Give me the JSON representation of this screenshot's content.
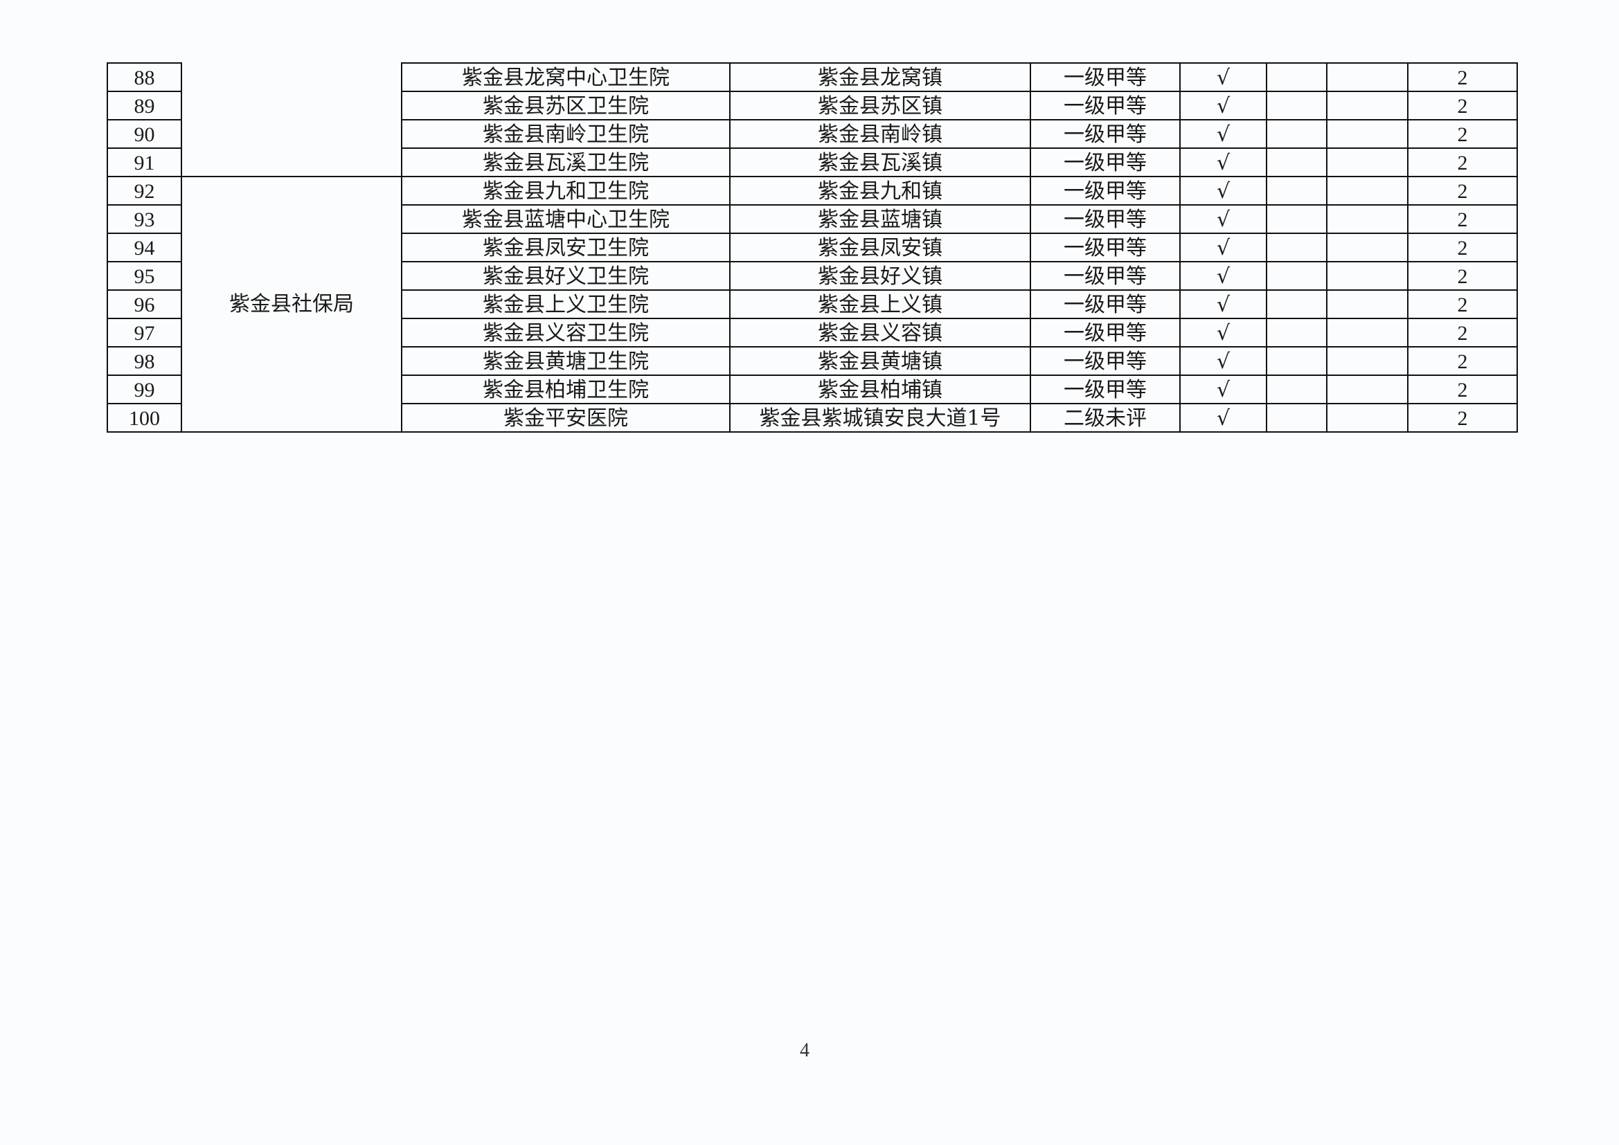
{
  "table": {
    "group_label": "紫金县社保局",
    "rows": [
      {
        "no": "88",
        "name": "紫金县龙窝中心卫生院",
        "address": "紫金县龙窝镇",
        "level": "一级甲等",
        "check": "√",
        "c6": "",
        "c7": "",
        "count": "2"
      },
      {
        "no": "89",
        "name": "紫金县苏区卫生院",
        "address": "紫金县苏区镇",
        "level": "一级甲等",
        "check": "√",
        "c6": "",
        "c7": "",
        "count": "2"
      },
      {
        "no": "90",
        "name": "紫金县南岭卫生院",
        "address": "紫金县南岭镇",
        "level": "一级甲等",
        "check": "√",
        "c6": "",
        "c7": "",
        "count": "2"
      },
      {
        "no": "91",
        "name": "紫金县瓦溪卫生院",
        "address": "紫金县瓦溪镇",
        "level": "一级甲等",
        "check": "√",
        "c6": "",
        "c7": "",
        "count": "2"
      },
      {
        "no": "92",
        "name": "紫金县九和卫生院",
        "address": "紫金县九和镇",
        "level": "一级甲等",
        "check": "√",
        "c6": "",
        "c7": "",
        "count": "2"
      },
      {
        "no": "93",
        "name": "紫金县蓝塘中心卫生院",
        "address": "紫金县蓝塘镇",
        "level": "一级甲等",
        "check": "√",
        "c6": "",
        "c7": "",
        "count": "2"
      },
      {
        "no": "94",
        "name": "紫金县凤安卫生院",
        "address": "紫金县凤安镇",
        "level": "一级甲等",
        "check": "√",
        "c6": "",
        "c7": "",
        "count": "2"
      },
      {
        "no": "95",
        "name": "紫金县好义卫生院",
        "address": "紫金县好义镇",
        "level": "一级甲等",
        "check": "√",
        "c6": "",
        "c7": "",
        "count": "2"
      },
      {
        "no": "96",
        "name": "紫金县上义卫生院",
        "address": "紫金县上义镇",
        "level": "一级甲等",
        "check": "√",
        "c6": "",
        "c7": "",
        "count": "2"
      },
      {
        "no": "97",
        "name": "紫金县义容卫生院",
        "address": "紫金县义容镇",
        "level": "一级甲等",
        "check": "√",
        "c6": "",
        "c7": "",
        "count": "2"
      },
      {
        "no": "98",
        "name": "紫金县黄塘卫生院",
        "address": "紫金县黄塘镇",
        "level": "一级甲等",
        "check": "√",
        "c6": "",
        "c7": "",
        "count": "2"
      },
      {
        "no": "99",
        "name": "紫金县柏埔卫生院",
        "address": "紫金县柏埔镇",
        "level": "一级甲等",
        "check": "√",
        "c6": "",
        "c7": "",
        "count": "2"
      },
      {
        "no": "100",
        "name": "紫金平安医院",
        "address": "紫金县紫城镇安良大道1号",
        "level": "二级未评",
        "check": "√",
        "c6": "",
        "c7": "",
        "count": "2"
      }
    ]
  },
  "page_number": "4"
}
